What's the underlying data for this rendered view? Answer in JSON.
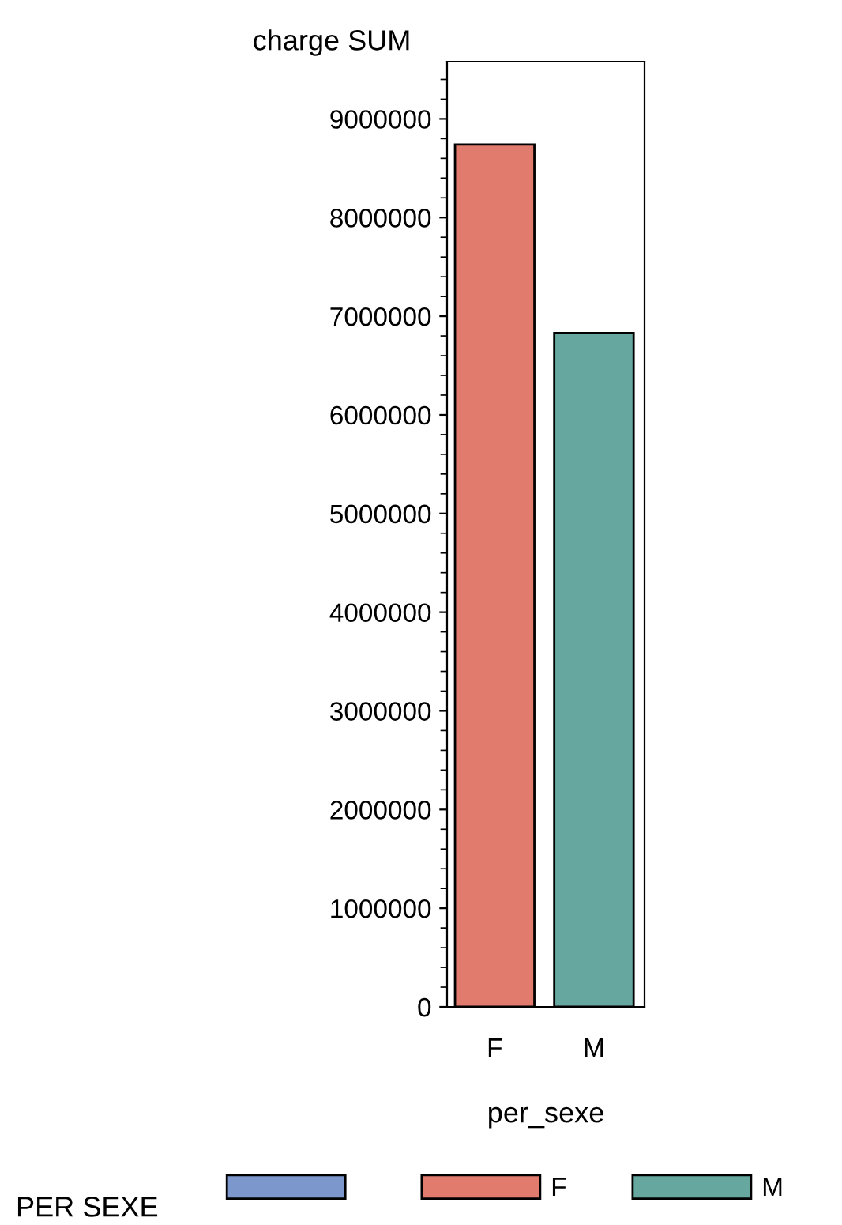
{
  "chart_data": {
    "type": "bar",
    "xlabel": "per_sexe",
    "ylabel": "charge SUM",
    "legend_title": "PER SEXE",
    "legend": "bottom",
    "grid": false,
    "categories": [
      "F",
      "M"
    ],
    "series": [
      {
        "color": "#7b97cc",
        "values": [
          null,
          null
        ]
      },
      {
        "name": "F",
        "color": "#e07b6e",
        "values": [
          8740000,
          null
        ]
      },
      {
        "name": "M",
        "color": "#66a8a0",
        "values": [
          null,
          6830000
        ]
      }
    ],
    "ylim": [
      0,
      9580000
    ],
    "yticks": [
      0,
      1000000,
      2000000,
      3000000,
      4000000,
      5000000,
      6000000,
      7000000,
      8000000,
      9000000
    ]
  }
}
